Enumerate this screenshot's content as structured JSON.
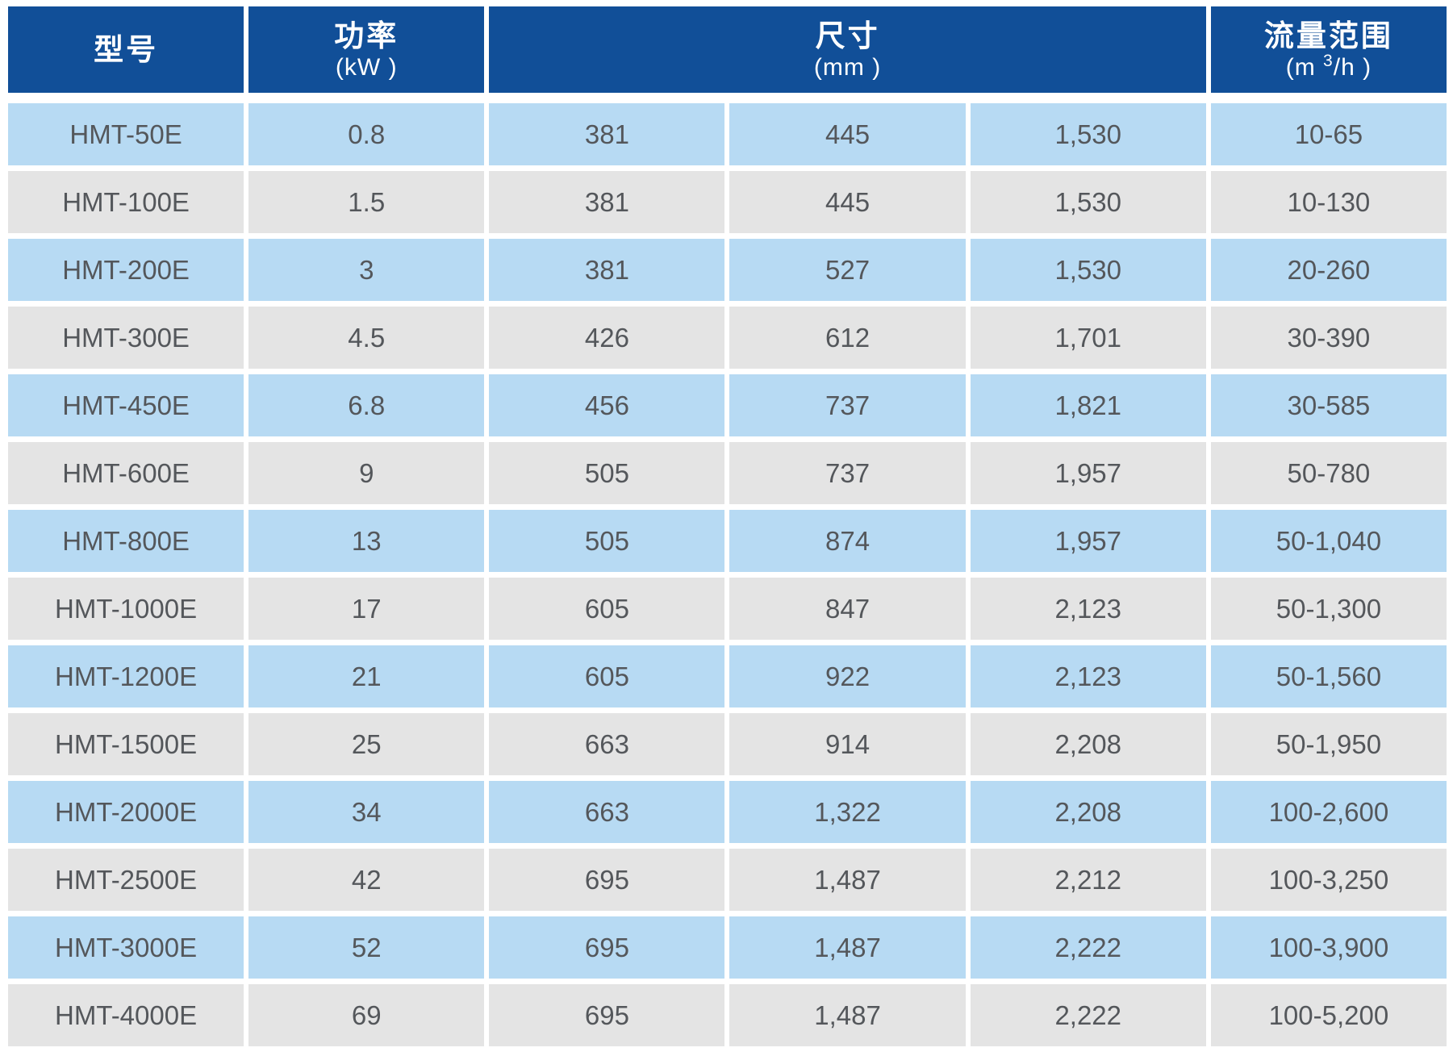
{
  "table": {
    "columns": {
      "model": "型号",
      "power_label": "功率",
      "power_unit": "(kW )",
      "size_label": "尺寸",
      "size_unit": "(mm )",
      "flow_label": "流量范围",
      "flow_unit_prefix": "(m ",
      "flow_unit_sup": "3",
      "flow_unit_suffix": "/h )"
    },
    "rows": [
      {
        "model": "HMT-50E",
        "power": "0.8",
        "dims": [
          "381",
          "445",
          "1,530"
        ],
        "flow": "10-65"
      },
      {
        "model": "HMT-100E",
        "power": "1.5",
        "dims": [
          "381",
          "445",
          "1,530"
        ],
        "flow": "10-130"
      },
      {
        "model": "HMT-200E",
        "power": "3",
        "dims": [
          "381",
          "527",
          "1,530"
        ],
        "flow": "20-260"
      },
      {
        "model": "HMT-300E",
        "power": "4.5",
        "dims": [
          "426",
          "612",
          "1,701"
        ],
        "flow": "30-390"
      },
      {
        "model": "HMT-450E",
        "power": "6.8",
        "dims": [
          "456",
          "737",
          "1,821"
        ],
        "flow": "30-585"
      },
      {
        "model": "HMT-600E",
        "power": "9",
        "dims": [
          "505",
          "737",
          "1,957"
        ],
        "flow": "50-780"
      },
      {
        "model": "HMT-800E",
        "power": "13",
        "dims": [
          "505",
          "874",
          "1,957"
        ],
        "flow": "50-1,040"
      },
      {
        "model": "HMT-1000E",
        "power": "17",
        "dims": [
          "605",
          "847",
          "2,123"
        ],
        "flow": "50-1,300"
      },
      {
        "model": "HMT-1200E",
        "power": "21",
        "dims": [
          "605",
          "922",
          "2,123"
        ],
        "flow": "50-1,560"
      },
      {
        "model": "HMT-1500E",
        "power": "25",
        "dims": [
          "663",
          "914",
          "2,208"
        ],
        "flow": "50-1,950"
      },
      {
        "model": "HMT-2000E",
        "power": "34",
        "dims": [
          "663",
          "1,322",
          "2,208"
        ],
        "flow": "100-2,600"
      },
      {
        "model": "HMT-2500E",
        "power": "42",
        "dims": [
          "695",
          "1,487",
          "2,212"
        ],
        "flow": "100-3,250"
      },
      {
        "model": "HMT-3000E",
        "power": "52",
        "dims": [
          "695",
          "1,487",
          "2,222"
        ],
        "flow": "100-3,900"
      },
      {
        "model": "HMT-4000E",
        "power": "69",
        "dims": [
          "695",
          "1,487",
          "2,222"
        ],
        "flow": "100-5,200"
      }
    ]
  },
  "colors": {
    "header_bg": "#114f98",
    "header_text": "#ffffff",
    "row_blue": "#b7daf3",
    "row_gray": "#e4e4e4",
    "cell_text": "#54575b",
    "page_bg": "#ffffff"
  }
}
